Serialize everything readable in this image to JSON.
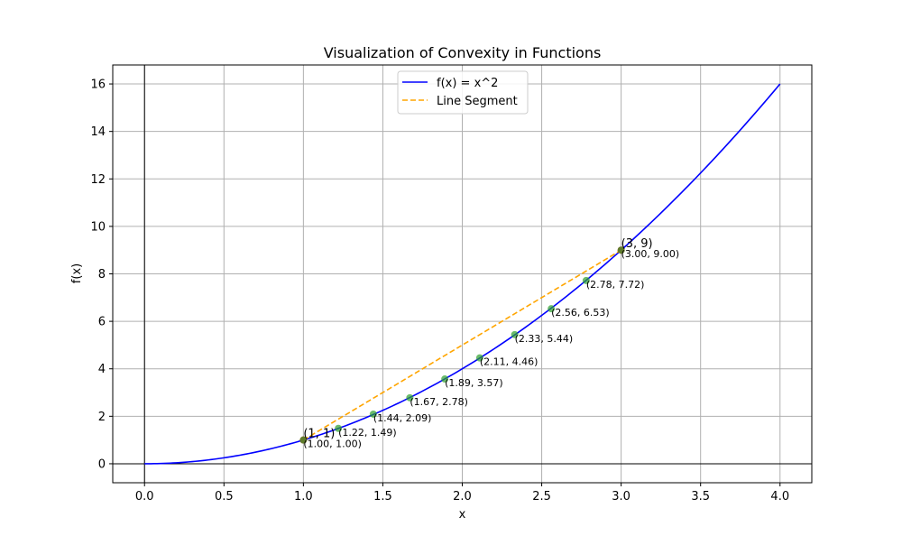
{
  "chart_data": {
    "type": "line",
    "title": "Visualization of Convexity in Functions",
    "xlabel": "x",
    "ylabel": "f(x)",
    "xlim": [
      -0.2,
      4.2
    ],
    "ylim": [
      -0.8,
      16.8
    ],
    "xticks": [
      0.0,
      0.5,
      1.0,
      1.5,
      2.0,
      2.5,
      3.0,
      3.5,
      4.0
    ],
    "xtick_labels": [
      "0.0",
      "0.5",
      "1.0",
      "1.5",
      "2.0",
      "2.5",
      "3.0",
      "3.5",
      "4.0"
    ],
    "yticks": [
      0,
      2,
      4,
      6,
      8,
      10,
      12,
      14,
      16
    ],
    "ytick_labels": [
      "0",
      "2",
      "4",
      "6",
      "8",
      "10",
      "12",
      "14",
      "16"
    ],
    "grid": true,
    "legend_position": "top-center",
    "series": [
      {
        "name": "f(x) = x^2",
        "function": "x^2",
        "domain": [
          0,
          4
        ],
        "color": "#0000ff",
        "style": "solid"
      },
      {
        "name": "Line Segment",
        "x": [
          1,
          3
        ],
        "y": [
          1,
          9
        ],
        "color": "#ffa500",
        "style": "dashed"
      }
    ],
    "endpoints": [
      {
        "x": 1,
        "y": 1,
        "label": "(1, 1)",
        "color": "#d62728"
      },
      {
        "x": 3,
        "y": 9,
        "label": "(3, 9)",
        "color": "#d62728"
      }
    ],
    "sample_points": [
      {
        "x": 1.0,
        "y": 1.0,
        "label": "(1.00, 1.00)"
      },
      {
        "x": 1.22,
        "y": 1.49,
        "label": "(1.22, 1.49)"
      },
      {
        "x": 1.44,
        "y": 2.09,
        "label": "(1.44, 2.09)"
      },
      {
        "x": 1.67,
        "y": 2.78,
        "label": "(1.67, 2.78)"
      },
      {
        "x": 1.89,
        "y": 3.57,
        "label": "(1.89, 3.57)"
      },
      {
        "x": 2.11,
        "y": 4.46,
        "label": "(2.11, 4.46)"
      },
      {
        "x": 2.33,
        "y": 5.44,
        "label": "(2.33, 5.44)"
      },
      {
        "x": 2.56,
        "y": 6.53,
        "label": "(2.56, 6.53)"
      },
      {
        "x": 2.78,
        "y": 7.72,
        "label": "(2.78, 7.72)"
      },
      {
        "x": 3.0,
        "y": 9.0,
        "label": "(3.00, 9.00)"
      }
    ],
    "sample_point_color": "#2ca02c",
    "colors": {
      "grid": "#b0b0b0",
      "axis_lines": "#000000"
    }
  }
}
